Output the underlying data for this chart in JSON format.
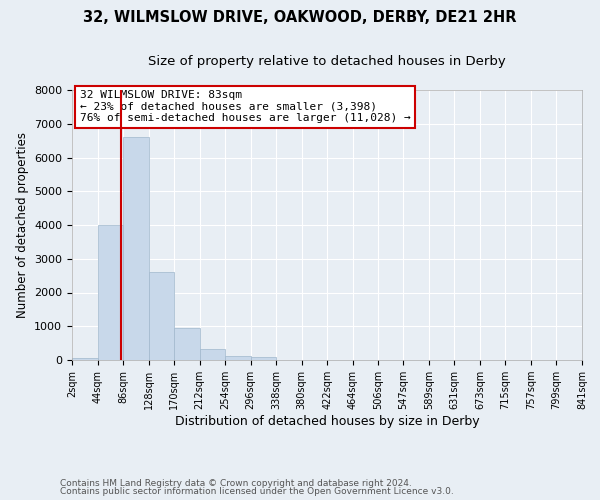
{
  "title1": "32, WILMSLOW DRIVE, OAKWOOD, DERBY, DE21 2HR",
  "title2": "Size of property relative to detached houses in Derby",
  "xlabel": "Distribution of detached houses by size in Derby",
  "ylabel": "Number of detached properties",
  "bin_edges": [
    2,
    44,
    86,
    128,
    170,
    212,
    254,
    296,
    338,
    380,
    422,
    464,
    506,
    547,
    589,
    631,
    673,
    715,
    757,
    799,
    841
  ],
  "bar_heights": [
    70,
    4000,
    6600,
    2600,
    960,
    330,
    120,
    100,
    0,
    0,
    0,
    0,
    0,
    0,
    0,
    0,
    0,
    0,
    0,
    0
  ],
  "bar_color": "#c8d8ea",
  "bar_edge_color": "#a0b8cc",
  "property_size": 83,
  "red_line_color": "#cc0000",
  "annotation_line1": "32 WILMSLOW DRIVE: 83sqm",
  "annotation_line2": "← 23% of detached houses are smaller (3,398)",
  "annotation_line3": "76% of semi-detached houses are larger (11,028) →",
  "annotation_box_color": "#ffffff",
  "annotation_box_edge_color": "#cc0000",
  "ylim": [
    0,
    8000
  ],
  "yticks": [
    0,
    1000,
    2000,
    3000,
    4000,
    5000,
    6000,
    7000,
    8000
  ],
  "background_color": "#e8eef4",
  "plot_bg_color": "#e8eef4",
  "footer1": "Contains HM Land Registry data © Crown copyright and database right 2024.",
  "footer2": "Contains public sector information licensed under the Open Government Licence v3.0.",
  "grid_color": "#ffffff",
  "title1_fontsize": 10.5,
  "title2_fontsize": 9.5,
  "ylabel_fontsize": 8.5,
  "xlabel_fontsize": 9
}
